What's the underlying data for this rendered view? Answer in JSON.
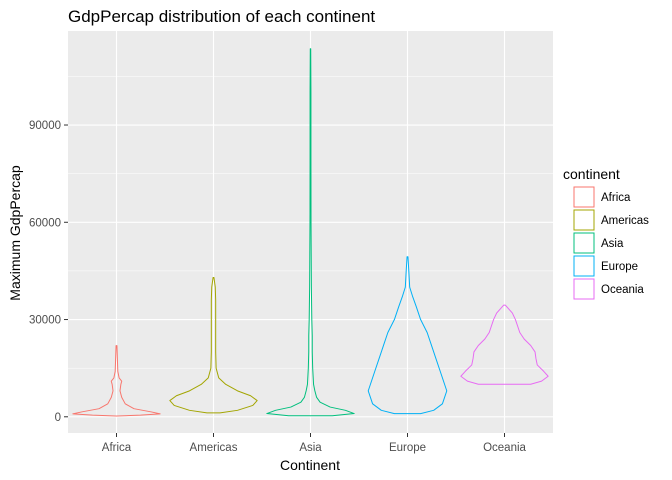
{
  "chart_data": {
    "type": "violin",
    "title": "GdpPercap distribution of each continent",
    "xlabel": "Continent",
    "ylabel": "Maximum GdpPercap",
    "categories": [
      "Africa",
      "Americas",
      "Asia",
      "Europe",
      "Oceania"
    ],
    "ylim": [
      -5000,
      119000
    ],
    "yticks": [
      0,
      30000,
      60000,
      90000
    ],
    "ytick_labels": [
      "0",
      "30000",
      "60000",
      "90000"
    ],
    "grid": true,
    "legend": {
      "title": "continent",
      "placement": "right",
      "entries": [
        "Africa",
        "Americas",
        "Asia",
        "Europe",
        "Oceania"
      ]
    },
    "series": [
      {
        "name": "Africa",
        "color": "#F8766D",
        "min": 241,
        "max": 21951,
        "profile": [
          [
            241,
            0.02
          ],
          [
            500,
            0.55
          ],
          [
            900,
            1.0
          ],
          [
            1500,
            0.8
          ],
          [
            2500,
            0.4
          ],
          [
            4000,
            0.2
          ],
          [
            6000,
            0.12
          ],
          [
            8000,
            0.08
          ],
          [
            10000,
            0.1
          ],
          [
            11000,
            0.12
          ],
          [
            12000,
            0.06
          ],
          [
            14000,
            0.03
          ],
          [
            18000,
            0.02
          ],
          [
            21951,
            0.01
          ]
        ]
      },
      {
        "name": "Americas",
        "color": "#A3A500",
        "min": 1202,
        "max": 42952,
        "profile": [
          [
            1202,
            0.15
          ],
          [
            2000,
            0.55
          ],
          [
            3500,
            0.9
          ],
          [
            5000,
            1.0
          ],
          [
            6500,
            0.85
          ],
          [
            8000,
            0.55
          ],
          [
            10000,
            0.28
          ],
          [
            12000,
            0.12
          ],
          [
            15000,
            0.06
          ],
          [
            20000,
            0.05
          ],
          [
            30000,
            0.05
          ],
          [
            36000,
            0.05
          ],
          [
            40000,
            0.04
          ],
          [
            42952,
            0.01
          ]
        ]
      },
      {
        "name": "Asia",
        "color": "#00BF7D",
        "min": 331,
        "max": 113523,
        "profile": [
          [
            331,
            0.5
          ],
          [
            1000,
            1.0
          ],
          [
            2000,
            0.8
          ],
          [
            3000,
            0.45
          ],
          [
            4500,
            0.22
          ],
          [
            6000,
            0.14
          ],
          [
            8000,
            0.1
          ],
          [
            10000,
            0.07
          ],
          [
            15000,
            0.05
          ],
          [
            20000,
            0.04
          ],
          [
            25000,
            0.04
          ],
          [
            30000,
            0.03
          ],
          [
            40000,
            0.02
          ],
          [
            60000,
            0.012
          ],
          [
            80000,
            0.01
          ],
          [
            100000,
            0.01
          ],
          [
            113523,
            0.005
          ]
        ]
      },
      {
        "name": "Europe",
        "color": "#00B0F6",
        "min": 974,
        "max": 49357,
        "profile": [
          [
            974,
            0.3
          ],
          [
            2000,
            0.6
          ],
          [
            4000,
            0.8
          ],
          [
            6000,
            0.85
          ],
          [
            8000,
            0.9
          ],
          [
            10000,
            0.85
          ],
          [
            14000,
            0.75
          ],
          [
            18000,
            0.65
          ],
          [
            22000,
            0.55
          ],
          [
            26000,
            0.45
          ],
          [
            30000,
            0.3
          ],
          [
            34000,
            0.2
          ],
          [
            37000,
            0.12
          ],
          [
            40000,
            0.05
          ],
          [
            45000,
            0.03
          ],
          [
            49357,
            0.01
          ]
        ]
      },
      {
        "name": "Oceania",
        "color": "#E76BF3",
        "min": 10040,
        "max": 34435,
        "profile": [
          [
            10040,
            0.6
          ],
          [
            11000,
            0.85
          ],
          [
            12500,
            1.0
          ],
          [
            14000,
            0.9
          ],
          [
            16000,
            0.75
          ],
          [
            18000,
            0.72
          ],
          [
            20000,
            0.7
          ],
          [
            22000,
            0.6
          ],
          [
            24000,
            0.45
          ],
          [
            26000,
            0.35
          ],
          [
            28000,
            0.3
          ],
          [
            30000,
            0.25
          ],
          [
            32000,
            0.18
          ],
          [
            34435,
            0.02
          ]
        ]
      }
    ]
  }
}
